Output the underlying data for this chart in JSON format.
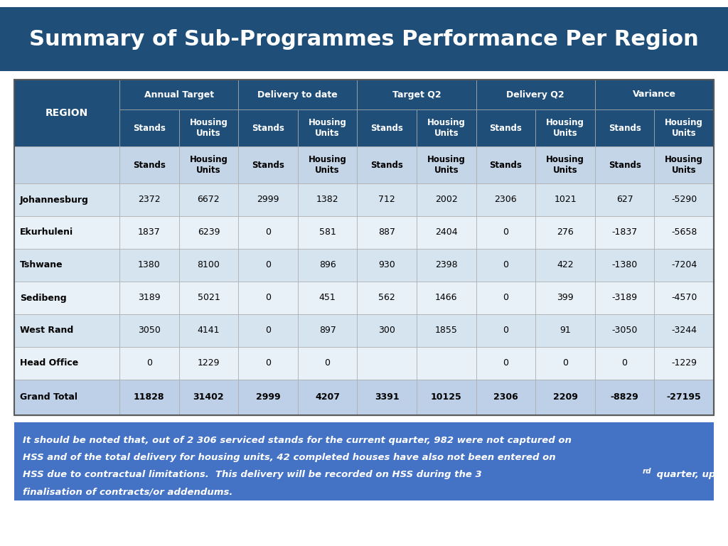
{
  "title": "Summary of Sub-Programmes Performance Per Region",
  "title_bg": "#1F4E79",
  "title_color": "#FFFFFF",
  "header_bg": "#1F4E79",
  "header_color": "#FFFFFF",
  "subheader_bg": "#C5D5E8",
  "subheader_color": "#000000",
  "row_bg": "#D6E4F0",
  "row_alt_bg": "#E8F0F8",
  "grand_total_bg": "#BDD0E8",
  "footer_bg": "#4472C4",
  "footer_color": "#FFFFFF",
  "outer_bg": "#FFFFFF",
  "col_groups": [
    "Annual Target",
    "Delivery to date",
    "Target Q2",
    "Delivery Q2",
    "Variance"
  ],
  "data": [
    [
      "Johannesburg",
      "2372",
      "6672",
      "2999",
      "1382",
      "712",
      "2002",
      "2306",
      "1021",
      "627",
      "-5290"
    ],
    [
      "Ekurhuleni",
      "1837",
      "6239",
      "0",
      "581",
      "887",
      "2404",
      "0",
      "276",
      "-1837",
      "-5658"
    ],
    [
      "Tshwane",
      "1380",
      "8100",
      "0",
      "896",
      "930",
      "2398",
      "0",
      "422",
      "-1380",
      "-7204"
    ],
    [
      "Sedibeng",
      "3189",
      "5021",
      "0",
      "451",
      "562",
      "1466",
      "0",
      "399",
      "-3189",
      "-4570"
    ],
    [
      "West Rand",
      "3050",
      "4141",
      "0",
      "897",
      "300",
      "1855",
      "0",
      "91",
      "-3050",
      "-3244"
    ],
    [
      "Head Office",
      "0",
      "1229",
      "0",
      "0",
      "",
      "",
      "0",
      "0",
      "0",
      "-1229"
    ],
    [
      "Grand Total",
      "11828",
      "31402",
      "2999",
      "4207",
      "3391",
      "10125",
      "2306",
      "2209",
      "-8829",
      "-27195"
    ]
  ],
  "footer_lines": [
    "It should be noted that, out of 2 306 serviced stands for the current quarter, 982 were not captured on",
    "HSS and of the total delivery for housing units, 42 completed houses have also not been entered on",
    "HSS due to contractual limitations.  This delivery will be recorded on HSS during the 3",
    "finalisation of contracts/or addendums."
  ]
}
